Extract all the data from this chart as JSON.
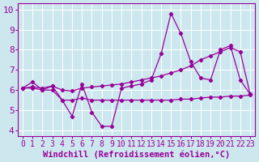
{
  "background_color": "#cce8ee",
  "grid_color": "#b0d8e0",
  "line_color": "#990099",
  "xlim": [
    -0.5,
    23.5
  ],
  "ylim": [
    3.7,
    10.3
  ],
  "xticks": [
    0,
    1,
    2,
    3,
    4,
    5,
    6,
    7,
    8,
    9,
    10,
    11,
    12,
    13,
    14,
    15,
    16,
    17,
    18,
    19,
    20,
    21,
    22,
    23
  ],
  "yticks": [
    4,
    5,
    6,
    7,
    8,
    9,
    10
  ],
  "xlabel": "Windchill (Refroidissement éolien,°C)",
  "line1_x": [
    0,
    1,
    2,
    3,
    4,
    5,
    6,
    7,
    8,
    9,
    10,
    11,
    12,
    13,
    14,
    15,
    16,
    17,
    18,
    19,
    20,
    21,
    22,
    23
  ],
  "line1_y": [
    6.1,
    6.4,
    6.0,
    6.2,
    5.5,
    4.7,
    6.3,
    4.9,
    4.2,
    4.2,
    6.1,
    6.2,
    6.3,
    6.5,
    7.8,
    9.8,
    8.8,
    7.4,
    6.6,
    6.5,
    8.0,
    8.2,
    6.5,
    5.8
  ],
  "line2_x": [
    0,
    1,
    2,
    3,
    4,
    5,
    6,
    7,
    8,
    9,
    10,
    11,
    12,
    13,
    14,
    15,
    16,
    17,
    18,
    19,
    20,
    21,
    22,
    23
  ],
  "line2_y": [
    6.1,
    6.15,
    6.1,
    6.2,
    6.0,
    5.95,
    6.1,
    6.15,
    6.2,
    6.25,
    6.3,
    6.4,
    6.5,
    6.6,
    6.7,
    6.85,
    7.0,
    7.2,
    7.5,
    7.7,
    7.9,
    8.1,
    7.9,
    5.8
  ],
  "line3_x": [
    0,
    1,
    2,
    3,
    4,
    5,
    6,
    7,
    8,
    9,
    10,
    11,
    12,
    13,
    14,
    15,
    16,
    17,
    18,
    19,
    20,
    21,
    22,
    23
  ],
  "line3_y": [
    6.1,
    6.1,
    6.0,
    6.0,
    5.5,
    5.5,
    5.6,
    5.5,
    5.5,
    5.5,
    5.5,
    5.5,
    5.5,
    5.5,
    5.5,
    5.5,
    5.55,
    5.55,
    5.6,
    5.65,
    5.65,
    5.7,
    5.7,
    5.75
  ],
  "tick_fontsize": 7,
  "xlabel_fontsize": 7.5
}
